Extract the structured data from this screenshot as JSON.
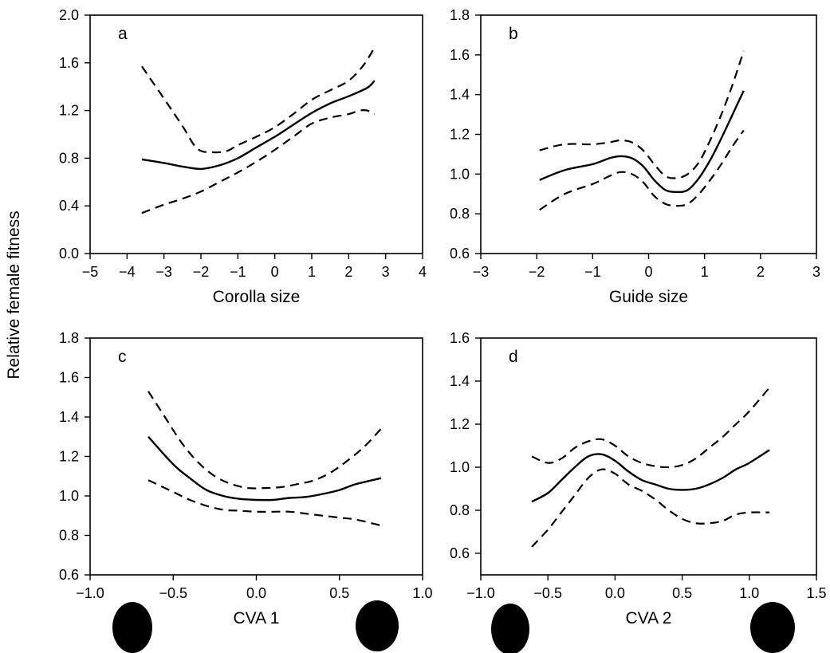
{
  "figure": {
    "ylabel": "Relative female fitness"
  },
  "chart_data": [
    {
      "type": "line",
      "panel_letter": "a",
      "xlabel": "Corolla size",
      "xlim": [
        -5,
        4
      ],
      "ylim": [
        0.0,
        2.0
      ],
      "xticks": [
        -5,
        -4,
        -3,
        -2,
        -1,
        0,
        1,
        2,
        3,
        4
      ],
      "xtick_labels": [
        "−5",
        "−4",
        "−3",
        "−2",
        "−1",
        "0",
        "1",
        "2",
        "3",
        "4"
      ],
      "yticks": [
        0.0,
        0.4,
        0.8,
        1.2,
        1.6,
        2.0
      ],
      "ytick_labels": [
        "0.0",
        "0.4",
        "0.8",
        "1.2",
        "1.6",
        "2.0"
      ],
      "grid": false,
      "series": [
        {
          "style": "solid",
          "x": [
            -3.6,
            -3.0,
            -2.5,
            -2.0,
            -1.5,
            -1.0,
            -0.5,
            0.0,
            0.5,
            1.0,
            1.5,
            2.0,
            2.5,
            2.7
          ],
          "y": [
            0.79,
            0.76,
            0.73,
            0.71,
            0.74,
            0.8,
            0.89,
            0.98,
            1.08,
            1.18,
            1.26,
            1.32,
            1.39,
            1.45
          ]
        },
        {
          "style": "dashed",
          "x": [
            -3.6,
            -3.0,
            -2.5,
            -2.1,
            -1.7,
            -1.3,
            -1.0,
            -0.5,
            0.0,
            0.5,
            1.0,
            1.5,
            2.0,
            2.4,
            2.7
          ],
          "y": [
            1.57,
            1.3,
            1.07,
            0.88,
            0.85,
            0.86,
            0.91,
            0.98,
            1.06,
            1.17,
            1.29,
            1.37,
            1.45,
            1.58,
            1.73
          ]
        },
        {
          "style": "dashed",
          "x": [
            -3.6,
            -3.0,
            -2.5,
            -2.0,
            -1.5,
            -1.0,
            -0.5,
            0.0,
            0.5,
            1.0,
            1.5,
            2.0,
            2.3,
            2.5,
            2.7
          ],
          "y": [
            0.34,
            0.41,
            0.46,
            0.52,
            0.6,
            0.68,
            0.77,
            0.87,
            0.98,
            1.09,
            1.14,
            1.17,
            1.2,
            1.2,
            1.17
          ]
        }
      ]
    },
    {
      "type": "line",
      "panel_letter": "b",
      "xlabel": "Guide size",
      "xlim": [
        -3,
        3
      ],
      "ylim": [
        0.6,
        1.8
      ],
      "xticks": [
        -3,
        -2,
        -1,
        0,
        1,
        2,
        3
      ],
      "xtick_labels": [
        "−3",
        "−2",
        "−1",
        "0",
        "1",
        "2",
        "3"
      ],
      "yticks": [
        0.6,
        0.8,
        1.0,
        1.2,
        1.4,
        1.6,
        1.8
      ],
      "ytick_labels": [
        "0.6",
        "0.8",
        "1.0",
        "1.2",
        "1.4",
        "1.6",
        "1.8"
      ],
      "grid": false,
      "series": [
        {
          "style": "solid",
          "x": [
            -1.95,
            -1.5,
            -1.0,
            -0.7,
            -0.5,
            -0.3,
            -0.1,
            0.1,
            0.3,
            0.5,
            0.7,
            0.9,
            1.1,
            1.3,
            1.5,
            1.7
          ],
          "y": [
            0.97,
            1.02,
            1.05,
            1.08,
            1.09,
            1.08,
            1.04,
            0.97,
            0.92,
            0.91,
            0.92,
            0.98,
            1.07,
            1.18,
            1.3,
            1.42
          ]
        },
        {
          "style": "dashed",
          "x": [
            -1.95,
            -1.5,
            -1.0,
            -0.7,
            -0.5,
            -0.3,
            -0.1,
            0.1,
            0.3,
            0.5,
            0.7,
            0.9,
            1.1,
            1.3,
            1.5,
            1.7
          ],
          "y": [
            1.12,
            1.15,
            1.15,
            1.16,
            1.17,
            1.16,
            1.12,
            1.05,
            0.99,
            0.98,
            1.0,
            1.06,
            1.17,
            1.3,
            1.45,
            1.62
          ]
        },
        {
          "style": "dashed",
          "x": [
            -1.95,
            -1.5,
            -1.0,
            -0.7,
            -0.5,
            -0.3,
            -0.1,
            0.1,
            0.3,
            0.5,
            0.7,
            0.9,
            1.1,
            1.3,
            1.5,
            1.7
          ],
          "y": [
            0.82,
            0.9,
            0.95,
            0.99,
            1.01,
            1.0,
            0.96,
            0.89,
            0.85,
            0.84,
            0.85,
            0.9,
            0.97,
            1.05,
            1.14,
            1.22
          ]
        }
      ]
    },
    {
      "type": "line",
      "panel_letter": "c",
      "xlabel": "CVA 1",
      "xlim": [
        -1.0,
        1.0
      ],
      "ylim": [
        0.6,
        1.8
      ],
      "xticks": [
        -1.0,
        -0.5,
        0.0,
        0.5,
        1.0
      ],
      "xtick_labels": [
        "−1.0",
        "−0.5",
        "0.0",
        "0.5",
        "1.0"
      ],
      "yticks": [
        0.6,
        0.8,
        1.0,
        1.2,
        1.4,
        1.6,
        1.8
      ],
      "ytick_labels": [
        "0.6",
        "0.8",
        "1.0",
        "1.2",
        "1.4",
        "1.6",
        "1.8"
      ],
      "grid": false,
      "series": [
        {
          "style": "solid",
          "x": [
            -0.65,
            -0.5,
            -0.4,
            -0.3,
            -0.2,
            -0.1,
            0.0,
            0.1,
            0.2,
            0.3,
            0.4,
            0.5,
            0.6,
            0.75
          ],
          "y": [
            1.3,
            1.16,
            1.09,
            1.03,
            1.0,
            0.985,
            0.98,
            0.98,
            0.99,
            0.995,
            1.01,
            1.03,
            1.06,
            1.09
          ]
        },
        {
          "style": "dashed",
          "x": [
            -0.65,
            -0.55,
            -0.45,
            -0.35,
            -0.25,
            -0.15,
            -0.05,
            0.05,
            0.15,
            0.25,
            0.35,
            0.45,
            0.55,
            0.65,
            0.75
          ],
          "y": [
            1.53,
            1.4,
            1.27,
            1.17,
            1.1,
            1.06,
            1.04,
            1.04,
            1.045,
            1.06,
            1.08,
            1.12,
            1.18,
            1.25,
            1.34
          ]
        },
        {
          "style": "dashed",
          "x": [
            -0.65,
            -0.5,
            -0.4,
            -0.3,
            -0.2,
            -0.1,
            0.0,
            0.1,
            0.2,
            0.3,
            0.4,
            0.5,
            0.6,
            0.75
          ],
          "y": [
            1.08,
            1.02,
            0.98,
            0.95,
            0.93,
            0.925,
            0.92,
            0.92,
            0.92,
            0.91,
            0.9,
            0.89,
            0.88,
            0.85
          ]
        }
      ]
    },
    {
      "type": "line",
      "panel_letter": "d",
      "xlabel": "CVA 2",
      "xlim": [
        -1.0,
        1.5
      ],
      "ylim": [
        0.5,
        1.6
      ],
      "xticks": [
        -1.0,
        -0.5,
        0.0,
        0.5,
        1.0,
        1.5
      ],
      "xtick_labels": [
        "−1.0",
        "−0.5",
        "0.0",
        "0.5",
        "1.0",
        "1.5"
      ],
      "yticks": [
        0.6,
        0.8,
        1.0,
        1.2,
        1.4,
        1.6
      ],
      "ytick_labels": [
        "0.6",
        "0.8",
        "1.0",
        "1.2",
        "1.4",
        "1.6"
      ],
      "grid": false,
      "series": [
        {
          "style": "solid",
          "x": [
            -0.62,
            -0.5,
            -0.4,
            -0.3,
            -0.2,
            -0.1,
            0.0,
            0.1,
            0.2,
            0.3,
            0.4,
            0.5,
            0.6,
            0.7,
            0.8,
            0.9,
            1.0,
            1.15
          ],
          "y": [
            0.84,
            0.88,
            0.94,
            1.0,
            1.05,
            1.06,
            1.03,
            0.98,
            0.94,
            0.92,
            0.9,
            0.895,
            0.9,
            0.92,
            0.95,
            0.99,
            1.02,
            1.08
          ]
        },
        {
          "style": "dashed",
          "x": [
            -0.62,
            -0.5,
            -0.4,
            -0.3,
            -0.2,
            -0.1,
            0.0,
            0.1,
            0.2,
            0.3,
            0.4,
            0.5,
            0.6,
            0.7,
            0.8,
            0.9,
            1.0,
            1.15
          ],
          "y": [
            1.05,
            1.02,
            1.04,
            1.09,
            1.12,
            1.13,
            1.1,
            1.05,
            1.02,
            1.005,
            1.0,
            1.01,
            1.04,
            1.09,
            1.14,
            1.2,
            1.26,
            1.37
          ]
        },
        {
          "style": "dashed",
          "x": [
            -0.62,
            -0.5,
            -0.4,
            -0.3,
            -0.2,
            -0.1,
            0.0,
            0.1,
            0.2,
            0.3,
            0.4,
            0.5,
            0.6,
            0.7,
            0.8,
            0.9,
            1.0,
            1.15
          ],
          "y": [
            0.63,
            0.71,
            0.79,
            0.87,
            0.95,
            0.99,
            0.97,
            0.92,
            0.89,
            0.85,
            0.8,
            0.76,
            0.74,
            0.74,
            0.75,
            0.78,
            0.79,
            0.79
          ]
        }
      ]
    }
  ]
}
